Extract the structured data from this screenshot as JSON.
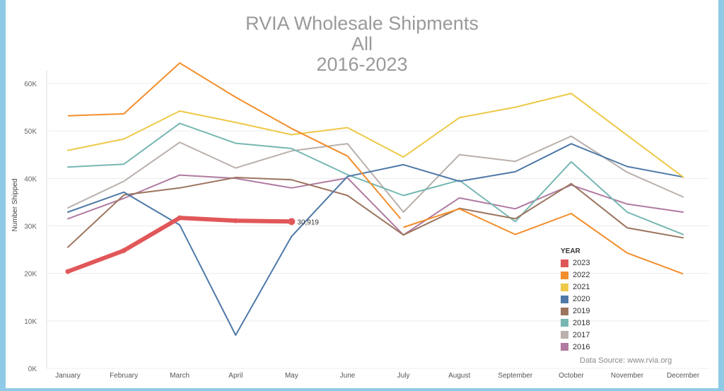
{
  "chart_data": {
    "type": "line",
    "title": [
      "RVIA Wholesale Shipments",
      "All",
      "2016-2023"
    ],
    "ylabel": "Number Shipped",
    "xlabel": "",
    "categories": [
      "January",
      "February",
      "March",
      "April",
      "May",
      "June",
      "July",
      "August",
      "September",
      "October",
      "November",
      "December"
    ],
    "ylim": [
      0,
      70000
    ],
    "yticks": [
      0,
      10000,
      20000,
      30000,
      40000,
      50000,
      60000
    ],
    "ytick_labels": [
      "0K",
      "10K",
      "20K",
      "30K",
      "40K",
      "50K",
      "60K"
    ],
    "grid": true,
    "legend": {
      "title": "YEAR",
      "placement": "bottom-right"
    },
    "series": [
      {
        "name": "2016",
        "color": "#b07aa1",
        "values": [
          31500,
          35800,
          40700,
          40000,
          38000,
          40100,
          28100,
          35900,
          33600,
          38600,
          34600,
          32900
        ]
      },
      {
        "name": "2017",
        "color": "#bab0ac",
        "values": [
          33800,
          39400,
          47600,
          42200,
          45800,
          47300,
          32900,
          45000,
          43600,
          48900,
          41300,
          36100
        ]
      },
      {
        "name": "2018",
        "color": "#76b7b2",
        "values": [
          42400,
          43000,
          51600,
          47400,
          46300,
          40800,
          36400,
          39600,
          30900,
          43500,
          32900,
          28200
        ]
      },
      {
        "name": "2019",
        "color": "#9c755f",
        "values": [
          25500,
          36500,
          38000,
          40200,
          39700,
          36400,
          28100,
          33700,
          31500,
          38900,
          29600,
          27500
        ]
      },
      {
        "name": "2020",
        "color": "#4e79a7",
        "values": [
          32900,
          37100,
          30200,
          7000,
          27800,
          40400,
          42900,
          39400,
          41400,
          47300,
          42500,
          40300
        ]
      },
      {
        "name": "2021",
        "color": "#edc948",
        "values": [
          45900,
          48300,
          54200,
          51800,
          49200,
          50700,
          44500,
          52800,
          55000,
          57900,
          49100,
          40300
        ]
      },
      {
        "name": "2022",
        "color": "#f28e2b",
        "values": [
          53200,
          53600,
          64300,
          57100,
          50500,
          44700,
          null,
          33600,
          28200,
          32600,
          24300,
          19900
        ],
        "extra_segment": [
          [
            5,
            44700
          ],
          [
            5.95,
            31500
          ],
          [
            6,
            29700
          ],
          [
            7,
            33600
          ]
        ]
      },
      {
        "name": "2023",
        "color": "#e15759",
        "values": [
          20400,
          24800,
          31700,
          31100,
          30919,
          null,
          null,
          null,
          null,
          null,
          null,
          null
        ],
        "label": "30,919"
      }
    ],
    "annotation": "30,919"
  },
  "source_text": "Data Source: www.rvia.org"
}
